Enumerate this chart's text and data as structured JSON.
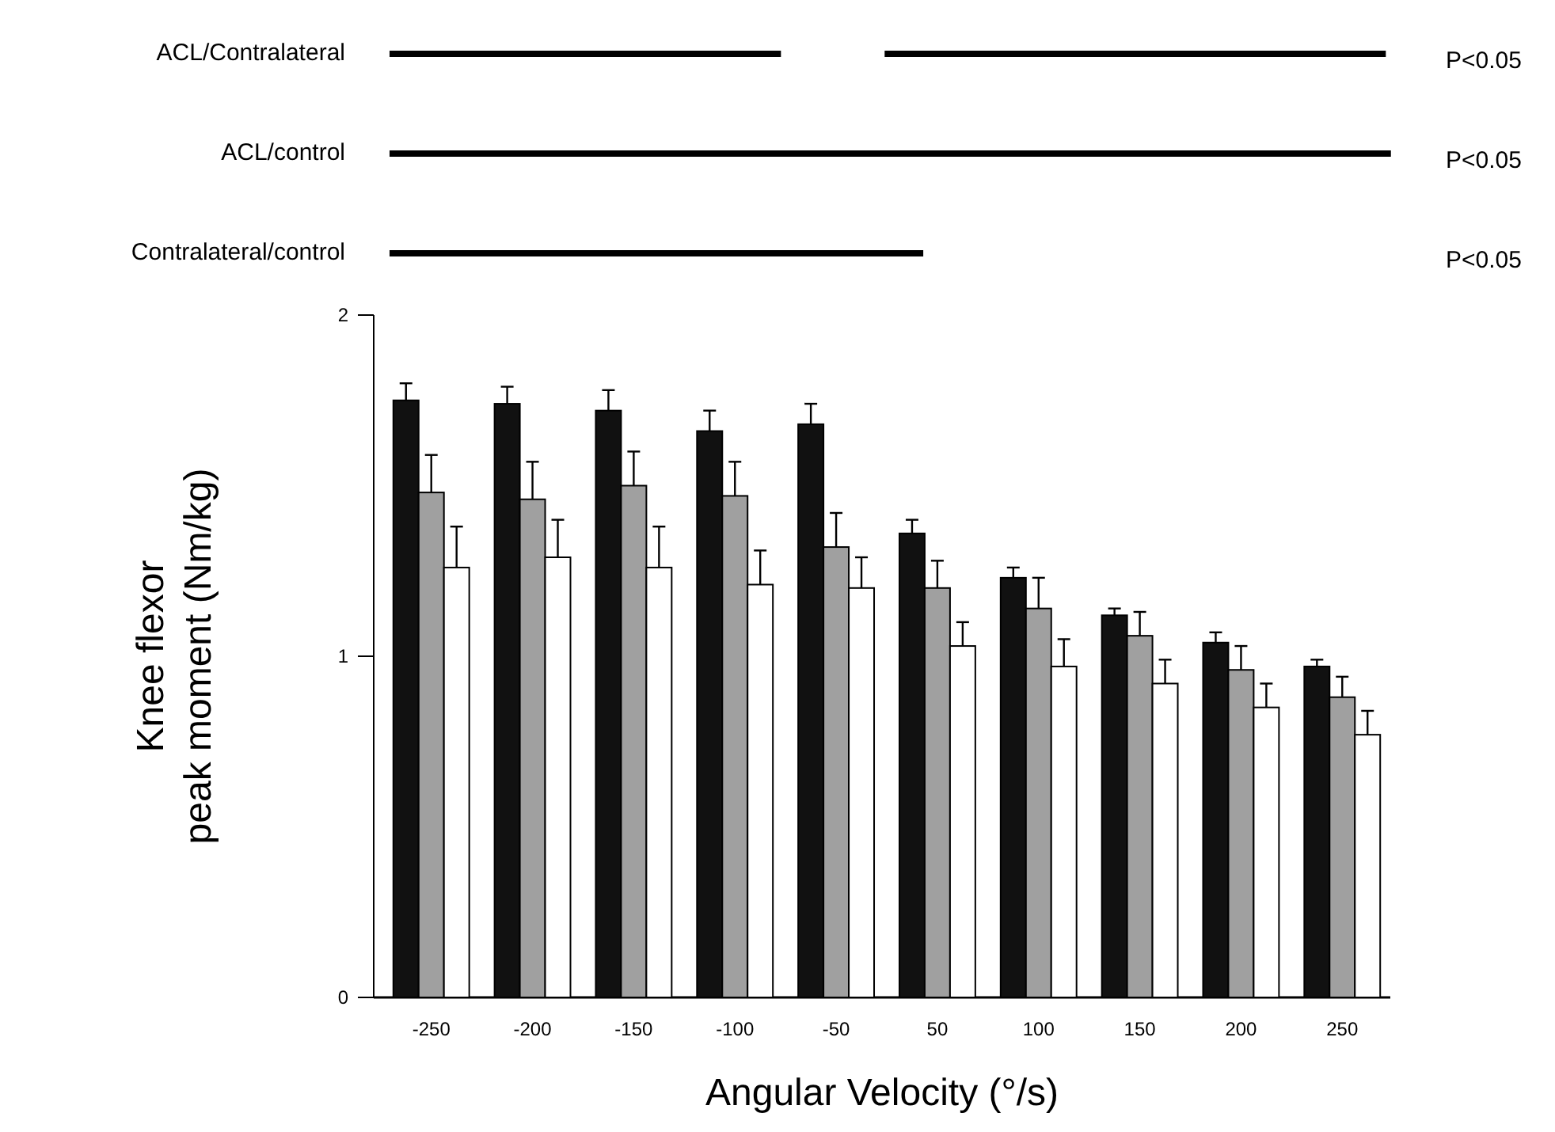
{
  "chart_data": {
    "type": "bar",
    "xlabel": "Angular Velocity (°/s)",
    "ylabel": "Knee flexor\npeak moment (Nm/kg)",
    "categories": [
      "-250",
      "-200",
      "-150",
      "-100",
      "-50",
      "50",
      "100",
      "150",
      "200",
      "250"
    ],
    "ylim": [
      0,
      2
    ],
    "yticks": [
      0,
      1,
      2
    ],
    "series": [
      {
        "color": "#111111",
        "values": [
          1.75,
          1.74,
          1.72,
          1.66,
          1.68,
          1.36,
          1.23,
          1.12,
          1.04,
          0.97
        ],
        "errors": [
          [
            1.75,
            1.8
          ],
          [
            1.74,
            1.79
          ],
          [
            1.72,
            1.78
          ],
          [
            1.66,
            1.72
          ],
          [
            1.68,
            1.74
          ],
          [
            1.36,
            1.4
          ],
          [
            1.23,
            1.26
          ],
          [
            1.12,
            1.14
          ],
          [
            1.04,
            1.07
          ],
          [
            0.97,
            0.99
          ]
        ]
      },
      {
        "color": "#a0a0a0",
        "values": [
          1.48,
          1.46,
          1.5,
          1.47,
          1.32,
          1.2,
          1.14,
          1.06,
          0.96,
          0.88
        ],
        "errors": [
          [
            1.48,
            1.59
          ],
          [
            1.46,
            1.57
          ],
          [
            1.5,
            1.6
          ],
          [
            1.47,
            1.57
          ],
          [
            1.32,
            1.42
          ],
          [
            1.2,
            1.28
          ],
          [
            1.14,
            1.23
          ],
          [
            1.06,
            1.13
          ],
          [
            0.96,
            1.03
          ],
          [
            0.88,
            0.94
          ]
        ]
      },
      {
        "color": "#ffffff",
        "values": [
          1.26,
          1.29,
          1.26,
          1.21,
          1.2,
          1.03,
          0.97,
          0.92,
          0.85,
          0.77
        ],
        "errors": [
          [
            1.26,
            1.38
          ],
          [
            1.29,
            1.4
          ],
          [
            1.26,
            1.38
          ],
          [
            1.21,
            1.31
          ],
          [
            1.2,
            1.29
          ],
          [
            1.03,
            1.1
          ],
          [
            0.97,
            1.05
          ],
          [
            0.92,
            0.99
          ],
          [
            0.85,
            0.92
          ],
          [
            0.77,
            0.84
          ]
        ]
      }
    ],
    "annotations": [
      "ACL/Contralateral",
      "P<0.05",
      "ACL/control",
      "P<0.05",
      "Contralateral/control",
      "P<0.05"
    ]
  }
}
